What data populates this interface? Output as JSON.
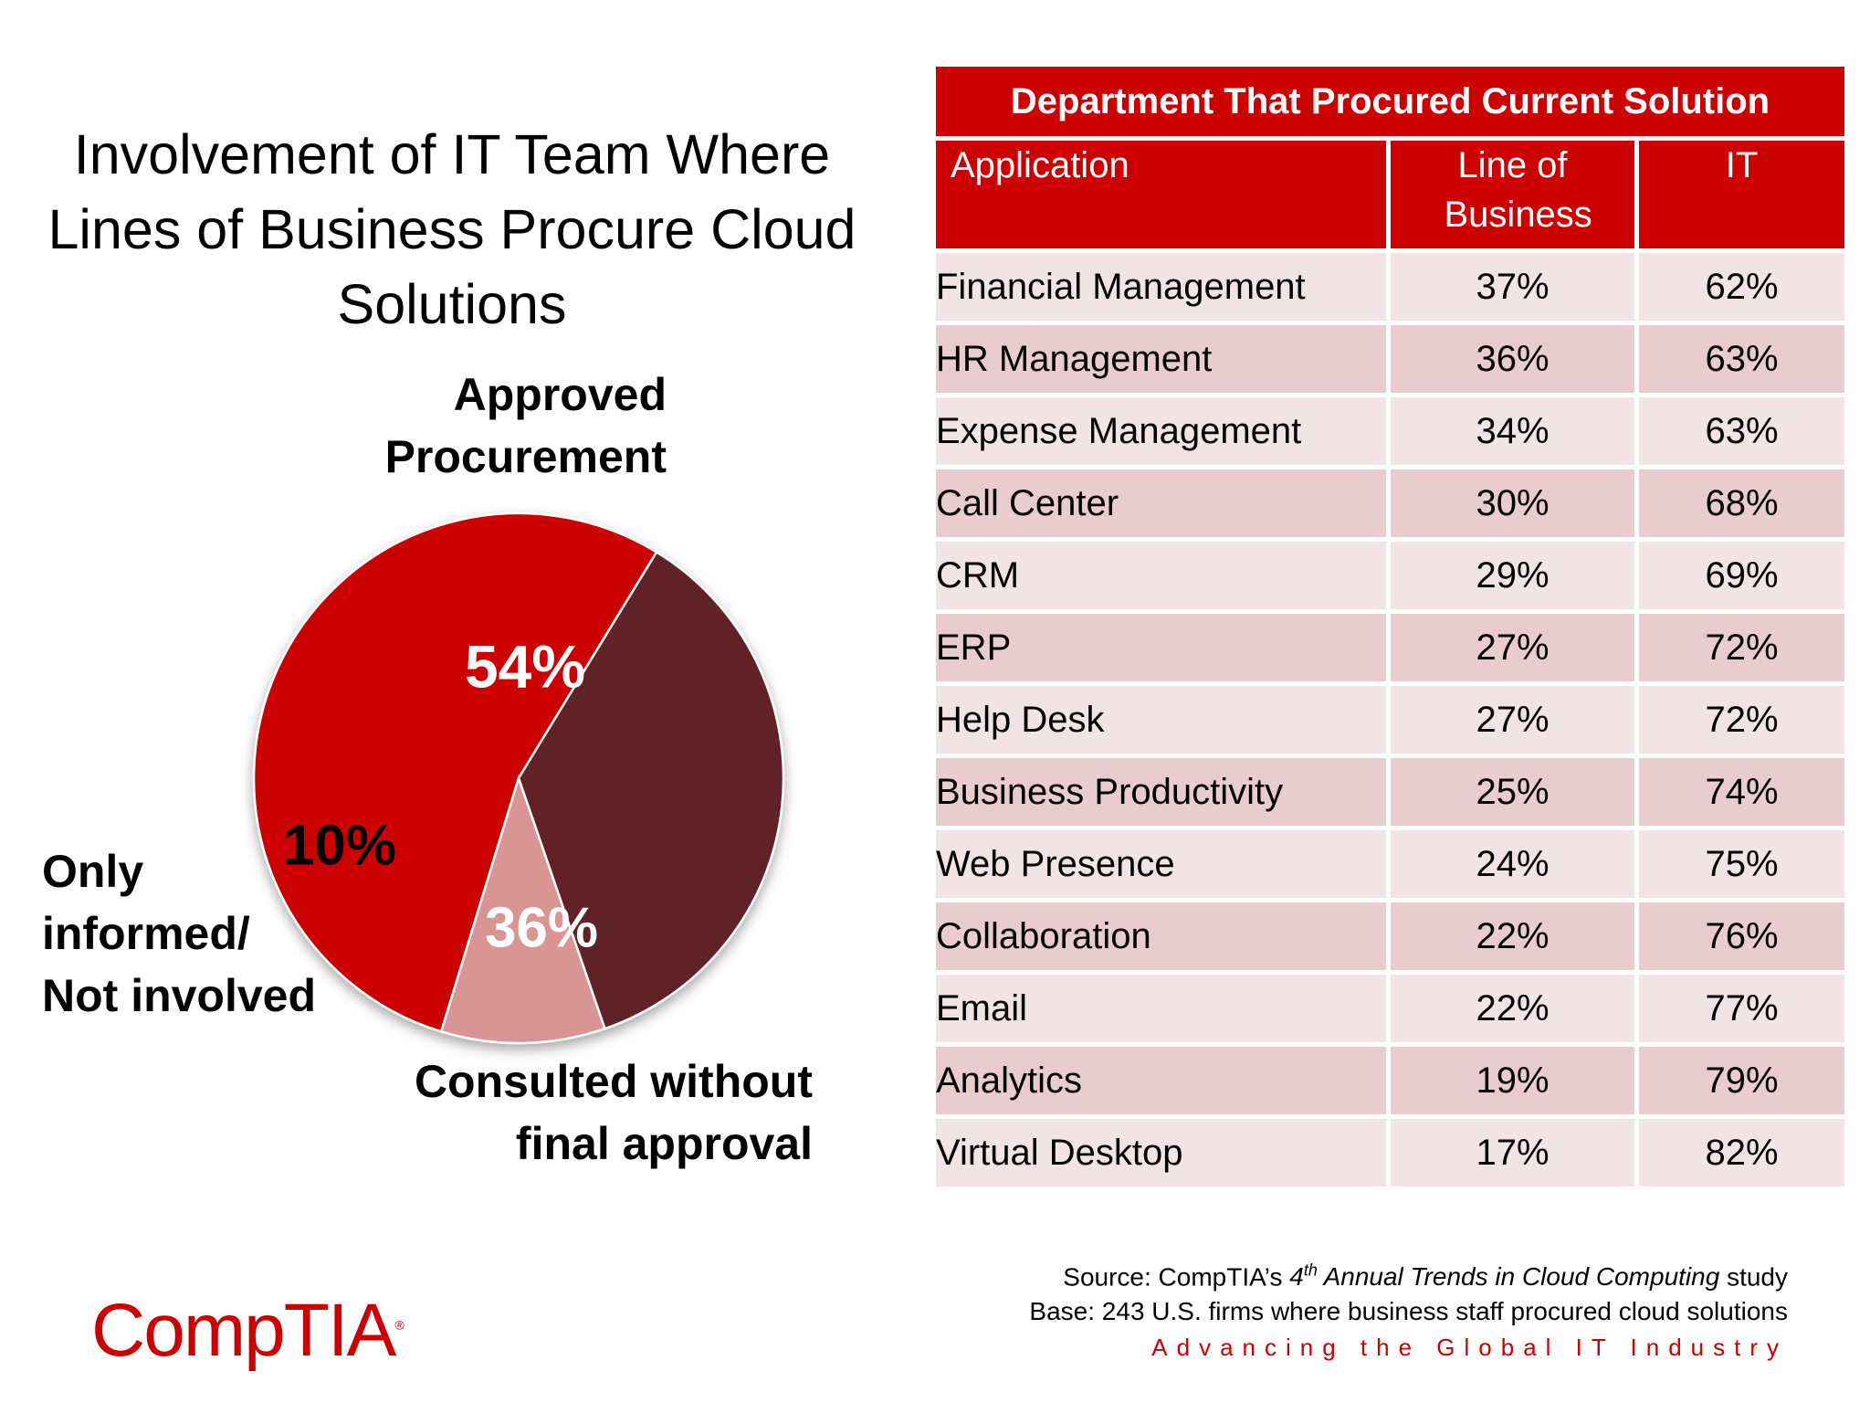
{
  "chart_data": [
    {
      "type": "pie",
      "title": "Involvement of IT Team Where Lines of Business Procure Cloud Solutions",
      "slices": [
        {
          "name": "Approved Procurement",
          "value": 54,
          "label": "54%",
          "color": "#cc0000"
        },
        {
          "name": "Consulted without final approval",
          "value": 36,
          "label": "36%",
          "color": "#612326"
        },
        {
          "name": "Only informed/ Not involved",
          "value": 10,
          "label": "10%",
          "color": "#d99594"
        }
      ]
    },
    {
      "type": "table",
      "title": "Department That Procured Current Solution",
      "columns": [
        "Application",
        "Line of Business",
        "IT"
      ],
      "rows": [
        {
          "application": "Financial Management",
          "lob": "37%",
          "it": "62%"
        },
        {
          "application": "HR Management",
          "lob": "36%",
          "it": "63%"
        },
        {
          "application": "Expense Management",
          "lob": "34%",
          "it": "63%"
        },
        {
          "application": "Call Center",
          "lob": "30%",
          "it": "68%"
        },
        {
          "application": "CRM",
          "lob": "29%",
          "it": "69%"
        },
        {
          "application": "ERP",
          "lob": "27%",
          "it": "72%"
        },
        {
          "application": "Help Desk",
          "lob": "27%",
          "it": "72%"
        },
        {
          "application": "Business Productivity",
          "lob": "25%",
          "it": "74%"
        },
        {
          "application": "Web Presence",
          "lob": "24%",
          "it": "75%"
        },
        {
          "application": "Collaboration",
          "lob": "22%",
          "it": "76%"
        },
        {
          "application": "Email",
          "lob": "22%",
          "it": "77%"
        },
        {
          "application": "Analytics",
          "lob": "19%",
          "it": "79%"
        },
        {
          "application": "Virtual Desktop",
          "lob": "17%",
          "it": "82%"
        }
      ]
    }
  ],
  "source": {
    "prefix": "Source: CompTIA’s ",
    "ordinal": "4",
    "ordinal_suffix": "th",
    "study_italic": " Annual Trends in Cloud Computing",
    "suffix": " study",
    "base": "Base: 243 U.S. firms where business staff procured cloud solutions"
  },
  "brand": {
    "logo": "CompTIA",
    "registered": "®",
    "tagline": "Advancing the Global IT Industry"
  }
}
